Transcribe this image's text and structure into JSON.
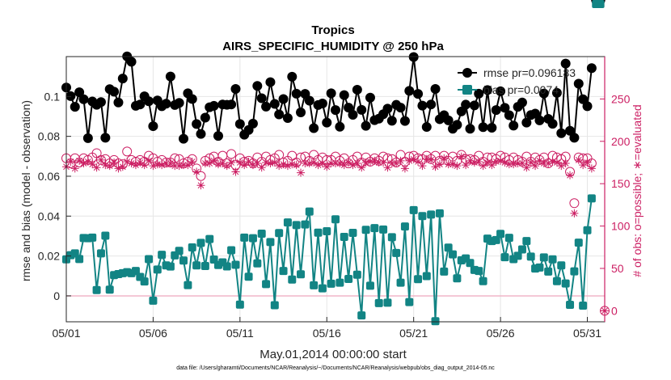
{
  "chart_data": {
    "type": "line",
    "title": "Tropics",
    "subtitle": "AIRS_SPECIFIC_HUMIDITY @ 250 hPa",
    "xlabel": "May.01,2014 00:00:00 start",
    "ylabel": "rmse and bias (model - observation)",
    "ylabel_right": "# of obs: o=possible; ∗=evaluated",
    "footer": "data file: /Users/gharamti/Documents/NCAR/Reanalysis/~/Documents/NCAR/Reanalysis/webpub/obs_diag_output_2014-05.nc",
    "xlim": [
      0,
      31
    ],
    "ylim": [
      -0.013,
      0.12
    ],
    "ylim_right": [
      -13,
      300
    ],
    "x_ticks": [
      0,
      5,
      10,
      15,
      20,
      25,
      30
    ],
    "x_tick_labels": [
      "05/01",
      "05/06",
      "05/11",
      "05/16",
      "05/21",
      "05/26",
      "05/31"
    ],
    "y_ticks": [
      0,
      0.02,
      0.04,
      0.06,
      0.08,
      0.1
    ],
    "y_tick_labels": [
      "0",
      "0.02",
      "0.04",
      "0.06",
      "0.08",
      "0.1"
    ],
    "y_right_ticks": [
      0,
      50,
      100,
      150,
      200,
      250
    ],
    "y_right_tick_labels": [
      "0",
      "50",
      "100",
      "150",
      "200",
      "250"
    ],
    "legend_position": "top-right",
    "colors": {
      "rmse": "#000000",
      "bias": "#128484",
      "obs": "#cc1f63",
      "grid": "#e6e6e6",
      "zero_line": "#f0b5c8"
    },
    "x_days": [
      0.0,
      0.25,
      0.5,
      0.75,
      1.0,
      1.25,
      1.5,
      1.75,
      2.0,
      2.25,
      2.5,
      2.75,
      3.0,
      3.25,
      3.5,
      3.75,
      4.0,
      4.25,
      4.5,
      4.75,
      5.0,
      5.25,
      5.5,
      5.75,
      6.0,
      6.25,
      6.5,
      6.75,
      7.0,
      7.25,
      7.5,
      7.75,
      8.0,
      8.25,
      8.5,
      8.75,
      9.0,
      9.25,
      9.5,
      9.75,
      10.0,
      10.25,
      10.5,
      10.75,
      11.0,
      11.25,
      11.5,
      11.75,
      12.0,
      12.25,
      12.5,
      12.75,
      13.0,
      13.25,
      13.5,
      13.75,
      14.0,
      14.25,
      14.5,
      14.75,
      15.0,
      15.25,
      15.5,
      15.75,
      16.0,
      16.25,
      16.5,
      16.75,
      17.0,
      17.25,
      17.5,
      17.75,
      18.0,
      18.25,
      18.5,
      18.75,
      19.0,
      19.25,
      19.5,
      19.75,
      20.0,
      20.25,
      20.5,
      20.75,
      21.0,
      21.25,
      21.5,
      21.75,
      22.0,
      22.25,
      22.5,
      22.75,
      23.0,
      23.25,
      23.5,
      23.75,
      24.0,
      24.25,
      24.5,
      24.75,
      25.0,
      25.25,
      25.5,
      25.75,
      26.0,
      26.25,
      26.5,
      26.75,
      27.0,
      27.25,
      27.5,
      27.75,
      28.0,
      28.25,
      28.5,
      28.75,
      29.0,
      29.25,
      29.5,
      29.75,
      30.0,
      30.25,
      30.5,
      30.75
    ],
    "series": [
      {
        "name": "rmse",
        "legend_label": "rmse pr=0.096183",
        "marker": "filled-circle",
        "values": [
          0.1045,
          0.1002,
          0.0948,
          0.1021,
          0.0986,
          0.0791,
          0.0975,
          0.0958,
          0.0972,
          0.0793,
          0.1037,
          0.1024,
          0.097,
          0.109,
          0.1201,
          0.1174,
          0.0953,
          0.096,
          0.1001,
          0.0976,
          0.0851,
          0.098,
          0.0951,
          0.0964,
          0.11,
          0.0957,
          0.0968,
          0.0788,
          0.1016,
          0.0987,
          0.0862,
          0.0812,
          0.0894,
          0.0946,
          0.0953,
          0.0802,
          0.096,
          0.0958,
          0.096,
          0.1038,
          0.0862,
          0.0808,
          0.0832,
          0.0864,
          0.1053,
          0.0991,
          0.0949,
          0.1072,
          0.0963,
          0.091,
          0.0987,
          0.0892,
          0.1099,
          0.1014,
          0.092,
          0.1013,
          0.0979,
          0.0841,
          0.0957,
          0.0965,
          0.0869,
          0.1016,
          0.0932,
          0.0848,
          0.1007,
          0.0944,
          0.0908,
          0.1034,
          0.0933,
          0.0853,
          0.0994,
          0.0881,
          0.0889,
          0.0911,
          0.0939,
          0.0878,
          0.0958,
          0.0944,
          0.0877,
          0.1028,
          0.1198,
          0.1013,
          0.0954,
          0.0847,
          0.096,
          0.1038,
          0.0886,
          0.0906,
          0.088,
          0.0838,
          0.0858,
          0.0925,
          0.0959,
          0.0838,
          0.0955,
          0.1014,
          0.0846,
          0.1032,
          0.0843,
          0.0932,
          0.1026,
          0.0943,
          0.0906,
          0.0854,
          0.0948,
          0.097,
          0.0869,
          0.0907,
          0.0914,
          0.088,
          0.1015,
          0.0888,
          0.0863,
          0.1018,
          0.0816,
          0.1165,
          0.0828,
          0.0793,
          0.1064,
          0.0986,
          0.0951,
          0.1142
        ]
      },
      {
        "name": "bias",
        "legend_label": "bias pr=0.0074…",
        "marker": "filled-square",
        "values": [
          0.0183,
          0.0204,
          0.0213,
          0.0185,
          0.029,
          0.0289,
          0.0292,
          0.0029,
          0.0213,
          0.0302,
          0.0031,
          0.0104,
          0.0109,
          0.0114,
          0.0119,
          0.0114,
          0.0125,
          0.0095,
          0.0072,
          0.0184,
          -0.0024,
          0.0132,
          0.0206,
          0.0153,
          0.0147,
          0.0203,
          0.0226,
          0.0177,
          0.0054,
          0.0243,
          0.0153,
          0.0266,
          0.015,
          0.0285,
          0.0182,
          0.0155,
          0.0168,
          0.0148,
          0.0229,
          0.0156,
          -0.0044,
          0.0292,
          0.0096,
          0.0289,
          0.0163,
          0.0312,
          0.0059,
          0.027,
          -0.0047,
          0.0315,
          0.0125,
          0.0368,
          0.0082,
          0.0355,
          0.0108,
          0.0358,
          0.0423,
          0.0053,
          0.0317,
          0.0038,
          0.0324,
          0.0061,
          0.0384,
          0.0066,
          0.0296,
          0.0085,
          0.0316,
          0.0106,
          -0.0098,
          0.0331,
          0.0051,
          0.034,
          -0.0036,
          0.0333,
          -0.0034,
          0.0294,
          0.0215,
          0.0066,
          0.0348,
          -0.0031,
          0.043,
          0.0084,
          0.04,
          0.0099,
          0.0408,
          -0.0127,
          0.0414,
          0.0122,
          0.0242,
          0.0208,
          0.0088,
          0.0178,
          0.0188,
          0.0165,
          0.013,
          0.0125,
          0.0074,
          0.0287,
          0.0275,
          0.028,
          0.0311,
          0.0194,
          0.0291,
          0.0184,
          0.0201,
          0.0233,
          0.0275,
          0.0197,
          0.0137,
          0.0142,
          0.0193,
          0.0122,
          0.0183,
          0.0074,
          0.0153,
          0.0062,
          -0.0045,
          0.0123,
          0.0267,
          -0.0049,
          0.0329,
          0.0489
        ]
      }
    ],
    "obs_possible": [
      180,
      174,
      180,
      175,
      180,
      178,
      181,
      186,
      178,
      179,
      174,
      178,
      174,
      173,
      188,
      178,
      176,
      178,
      176,
      183,
      180,
      176,
      178,
      175,
      175,
      180,
      179,
      174,
      176,
      179,
      168,
      159,
      177,
      180,
      182,
      176,
      183,
      174,
      185,
      172,
      180,
      176,
      177,
      174,
      181,
      176,
      182,
      178,
      180,
      184,
      175,
      177,
      183,
      175,
      181,
      182,
      177,
      184,
      178,
      181,
      178,
      178,
      182,
      177,
      180,
      174,
      178,
      182,
      175,
      181,
      176,
      180,
      177,
      182,
      180,
      179,
      175,
      184,
      176,
      182,
      183,
      180,
      179,
      183,
      179,
      183,
      177,
      183,
      177,
      182,
      177,
      184,
      179,
      179,
      178,
      183,
      176,
      181,
      181,
      179,
      183,
      181,
      178,
      181,
      178,
      176,
      182,
      176,
      181,
      178,
      181,
      174,
      183,
      181,
      179,
      182,
      164,
      127,
      181,
      180,
      180,
      174
    ],
    "obs_evaluated": [
      170,
      176,
      168,
      177,
      174,
      176,
      173,
      169,
      178,
      172,
      171,
      175,
      168,
      170,
      176,
      174,
      172,
      175,
      172,
      177,
      171,
      173,
      172,
      174,
      174,
      171,
      171,
      172,
      172,
      176,
      164,
      148,
      174,
      174,
      177,
      173,
      174,
      171,
      175,
      164,
      175,
      172,
      176,
      172,
      174,
      169,
      175,
      174,
      175,
      171,
      173,
      171,
      173,
      172,
      163,
      174,
      174,
      175,
      172,
      174,
      170,
      174,
      174,
      174,
      172,
      175,
      172,
      174,
      169,
      175,
      176,
      177,
      175,
      175,
      169,
      174,
      174,
      177,
      168,
      177,
      179,
      176,
      171,
      179,
      178,
      170,
      173,
      180,
      173,
      173,
      171,
      182,
      172,
      177,
      175,
      176,
      171,
      175,
      172,
      176,
      177,
      175,
      173,
      173,
      174,
      174,
      169,
      175,
      171,
      177,
      174,
      174,
      176,
      175,
      171,
      174,
      160,
      115,
      178,
      172,
      175,
      168
    ]
  }
}
